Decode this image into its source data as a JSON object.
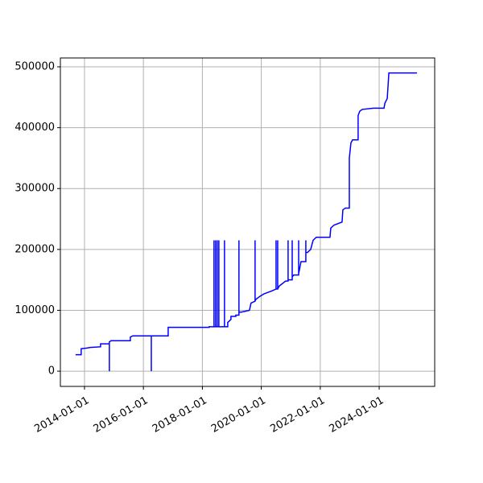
{
  "chart_data": {
    "type": "line",
    "x": [
      "2013-09-12",
      "2013-11-21",
      "2013-11-21",
      "2014-01-31",
      "2014-03-11",
      "2014-07-19",
      "2014-07-19",
      "2014-11-05",
      "2014-11-05",
      "2014-11-05",
      "2014-11-25",
      "2015-07-23",
      "2015-07-23",
      "2015-08-22",
      "2016-04-08",
      "2016-04-08",
      "2016-04-08",
      "2016-11-03",
      "2016-11-03",
      "2018-03-26",
      "2018-03-26",
      "2018-05-25",
      "2018-05-25",
      "2018-05-25",
      "2018-06-14",
      "2018-06-14",
      "2018-06-14",
      "2018-07-04",
      "2018-07-04",
      "2018-07-04",
      "2018-07-24",
      "2018-07-24",
      "2018-07-24",
      "2018-10-02",
      "2018-10-02",
      "2018-10-02",
      "2018-11-11",
      "2018-11-11",
      "2018-12-21",
      "2018-12-21",
      "2019-02-19",
      "2019-02-19",
      "2019-03-30",
      "2019-03-30",
      "2019-03-30",
      "2019-04-29",
      "2019-08-07",
      "2019-08-27",
      "2019-10-16",
      "2019-10-16",
      "2019-10-16",
      "2019-10-26",
      "2019-12-15",
      "2020-02-03",
      "2020-05-13",
      "2020-07-02",
      "2020-07-02",
      "2020-07-02",
      "2020-07-22",
      "2020-07-22",
      "2020-07-22",
      "2020-08-11",
      "2020-10-29",
      "2020-11-28",
      "2020-11-28",
      "2020-11-28",
      "2021-01-18",
      "2021-01-18",
      "2021-01-18",
      "2021-02-07",
      "2021-04-08",
      "2021-04-08",
      "2021-04-08",
      "2021-05-07",
      "2021-07-06",
      "2021-07-06",
      "2021-07-06",
      "2021-07-26",
      "2021-09-04",
      "2021-10-04",
      "2021-11-13",
      "2022-05-01",
      "2022-05-11",
      "2022-06-20",
      "2022-09-28",
      "2022-10-08",
      "2022-11-07",
      "2022-12-27",
      "2022-12-27",
      "2023-01-16",
      "2023-02-05",
      "2023-04-15",
      "2023-04-15",
      "2023-05-05",
      "2023-06-04",
      "2023-10-22",
      "2024-03-01",
      "2024-03-11",
      "2024-04-10",
      "2024-04-30",
      "2025-04-13"
    ],
    "series": [
      {
        "color": "#0000ff",
        "values": [
          27000,
          27000,
          37000,
          38000,
          39000,
          40000,
          45000,
          45000,
          0,
          48000,
          50000,
          50000,
          56000,
          58000,
          58000,
          0,
          58000,
          58000,
          72000,
          72000,
          73000,
          73000,
          215000,
          73000,
          73000,
          215000,
          73000,
          73000,
          215000,
          73000,
          73000,
          215000,
          73000,
          73000,
          215000,
          73000,
          73000,
          80000,
          85000,
          90000,
          90000,
          92000,
          92000,
          215000,
          97000,
          97000,
          100000,
          112000,
          115000,
          215000,
          115000,
          118000,
          123000,
          127000,
          132000,
          135000,
          215000,
          135000,
          135000,
          215000,
          135000,
          140000,
          148000,
          148000,
          215000,
          150000,
          150000,
          215000,
          155000,
          158000,
          158000,
          215000,
          160000,
          180000,
          180000,
          215000,
          195000,
          195000,
          200000,
          215000,
          220000,
          220000,
          235000,
          240000,
          245000,
          265000,
          268000,
          268000,
          350000,
          375000,
          380000,
          380000,
          420000,
          427000,
          430000,
          432000,
          432000,
          440000,
          448000,
          490000,
          490000
        ]
      }
    ],
    "xlim": [
      "2013-03-08",
      "2025-11-19"
    ],
    "xticks": [
      "2014-01-01",
      "2016-01-01",
      "2018-01-01",
      "2020-01-01",
      "2022-01-01",
      "2024-01-01"
    ],
    "ylim": [
      -25000,
      514550
    ],
    "yticks": [
      0,
      100000,
      200000,
      300000,
      400000,
      500000
    ],
    "grid": true
  }
}
